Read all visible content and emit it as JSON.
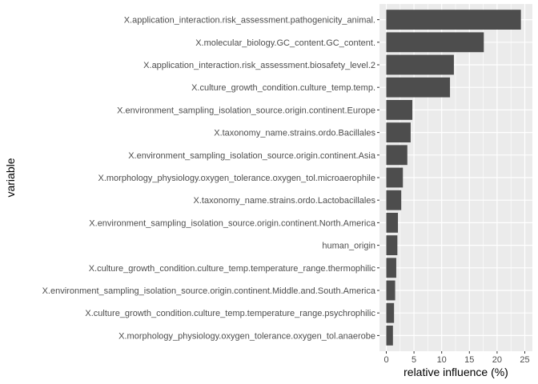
{
  "chart_data": {
    "type": "bar",
    "orientation": "horizontal",
    "xlabel": "relative influence (%)",
    "ylabel": "variable",
    "xlim": [
      0,
      25
    ],
    "xticks": [
      0,
      5,
      10,
      15,
      20,
      25
    ],
    "grid": true,
    "legend": "none",
    "colors": {
      "panel": "#EBEBEB",
      "grid": "#FFFFFF",
      "bar": "#4D4D4D",
      "tick_text": "#4D4D4D",
      "tick_mark": "#333333"
    },
    "bars": [
      {
        "label": "X.application_interaction.risk_assessment.pathogenicity_animal.",
        "value": 24.3
      },
      {
        "label": "X.molecular_biology.GC_content.GC_content.",
        "value": 17.6
      },
      {
        "label": "X.application_interaction.risk_assessment.biosafety_level.2",
        "value": 12.2
      },
      {
        "label": "X.culture_growth_condition.culture_temp.temp.",
        "value": 11.5
      },
      {
        "label": "X.environment_sampling_isolation_source.origin.continent.Europe",
        "value": 4.7
      },
      {
        "label": "X.taxonomy_name.strains.ordo.Bacillales",
        "value": 4.4
      },
      {
        "label": "X.environment_sampling_isolation_source.origin.continent.Asia",
        "value": 3.8
      },
      {
        "label": "X.morphology_physiology.oxygen_tolerance.oxygen_tol.microaerophile",
        "value": 3.0
      },
      {
        "label": "X.taxonomy_name.strains.ordo.Lactobacillales",
        "value": 2.7
      },
      {
        "label": "X.environment_sampling_isolation_source.origin.continent.North.America",
        "value": 2.1
      },
      {
        "label": "human_origin",
        "value": 2.0
      },
      {
        "label": "X.culture_growth_condition.culture_temp.temperature_range.thermophilic",
        "value": 1.8
      },
      {
        "label": "X.environment_sampling_isolation_source.origin.continent.Middle.and.South.America",
        "value": 1.6
      },
      {
        "label": "X.culture_growth_condition.culture_temp.temperature_range.psychrophilic",
        "value": 1.4
      },
      {
        "label": "X.morphology_physiology.oxygen_tolerance.oxygen_tol.anaerobe",
        "value": 1.2
      }
    ]
  }
}
